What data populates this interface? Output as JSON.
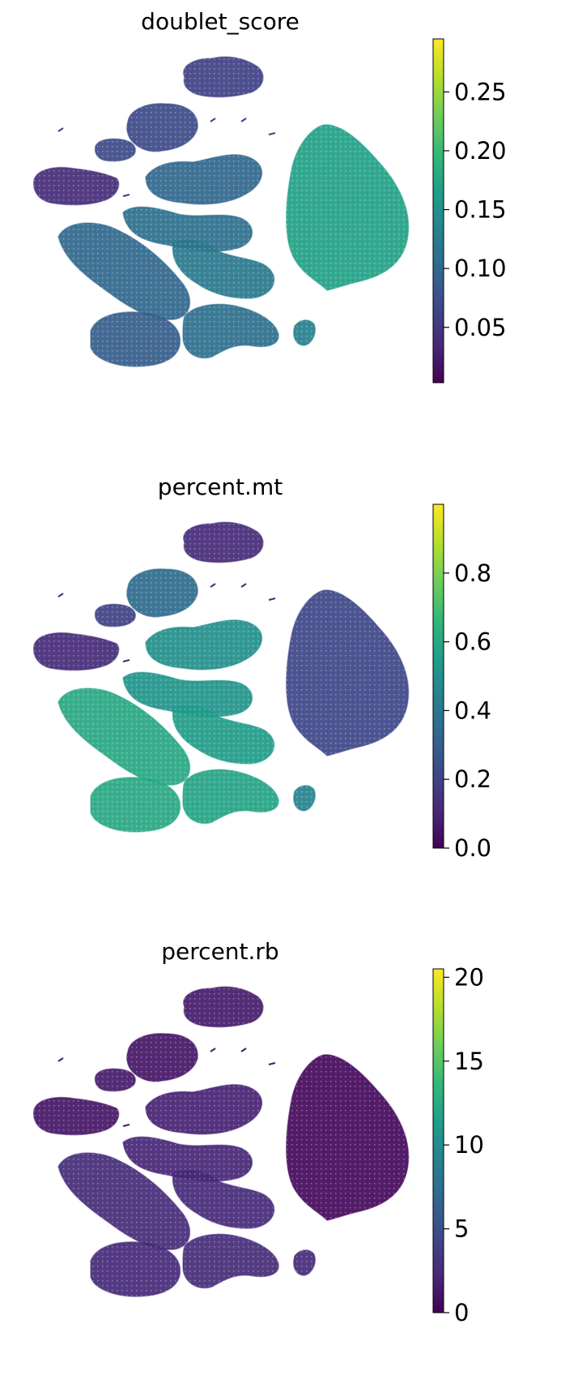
{
  "chart_data": [
    {
      "type": "scatter",
      "title": "doublet_score",
      "colormap": "viridis",
      "colorbar": {
        "min": 0.003,
        "max": 0.295,
        "ticks": [
          0.05,
          0.1,
          0.15,
          0.2,
          0.25
        ],
        "tick_labels": [
          "0.05",
          "0.10",
          "0.15",
          "0.20",
          "0.25"
        ]
      },
      "axes": "off",
      "regions": [
        {
          "name": "top-cluster",
          "level": 0.06
        },
        {
          "name": "upper-left-cluster",
          "level": 0.07
        },
        {
          "name": "small-left-cluster",
          "level": 0.07
        },
        {
          "name": "far-left-cluster",
          "level": 0.04
        },
        {
          "name": "center-upper-cluster",
          "level": 0.1
        },
        {
          "name": "center-cluster",
          "level": 0.11
        },
        {
          "name": "long-left-cluster",
          "level": 0.1
        },
        {
          "name": "center-lower-cluster",
          "level": 0.12
        },
        {
          "name": "bottom-left-cluster",
          "level": 0.09
        },
        {
          "name": "bottom-center-cluster",
          "level": 0.11
        },
        {
          "name": "right-big-cluster",
          "level": 0.17
        },
        {
          "name": "small-satellites",
          "level": 0.13
        }
      ]
    },
    {
      "type": "scatter",
      "title": "percent.mt",
      "colormap": "viridis",
      "colorbar": {
        "min": 0.0,
        "max": 1.0,
        "ticks": [
          0.0,
          0.2,
          0.4,
          0.6,
          0.8
        ],
        "tick_labels": [
          "0.0",
          "0.2",
          "0.4",
          "0.6",
          "0.8"
        ]
      },
      "axes": "off",
      "regions": [
        {
          "name": "top-cluster",
          "level": 0.12
        },
        {
          "name": "upper-left-cluster",
          "level": 0.35
        },
        {
          "name": "small-left-cluster",
          "level": 0.2
        },
        {
          "name": "far-left-cluster",
          "level": 0.12
        },
        {
          "name": "center-upper-cluster",
          "level": 0.5
        },
        {
          "name": "center-cluster",
          "level": 0.52
        },
        {
          "name": "long-left-cluster",
          "level": 0.6
        },
        {
          "name": "center-lower-cluster",
          "level": 0.55
        },
        {
          "name": "bottom-left-cluster",
          "level": 0.6
        },
        {
          "name": "bottom-center-cluster",
          "level": 0.58
        },
        {
          "name": "right-big-cluster",
          "level": 0.22
        },
        {
          "name": "small-satellites",
          "level": 0.45
        }
      ]
    },
    {
      "type": "scatter",
      "title": "percent.rb",
      "colormap": "viridis",
      "colorbar": {
        "min": 0,
        "max": 20.5,
        "ticks": [
          0,
          5,
          10,
          15,
          20
        ],
        "tick_labels": [
          "0",
          "5",
          "10",
          "15",
          "20"
        ]
      },
      "axes": "off",
      "regions": [
        {
          "name": "top-cluster",
          "level": 1.5
        },
        {
          "name": "upper-left-cluster",
          "level": 1.2
        },
        {
          "name": "small-left-cluster",
          "level": 1.5
        },
        {
          "name": "far-left-cluster",
          "level": 1.2
        },
        {
          "name": "center-upper-cluster",
          "level": 2.0
        },
        {
          "name": "center-cluster",
          "level": 2.2
        },
        {
          "name": "long-left-cluster",
          "level": 2.6
        },
        {
          "name": "center-lower-cluster",
          "level": 2.4
        },
        {
          "name": "bottom-left-cluster",
          "level": 2.4
        },
        {
          "name": "bottom-center-cluster",
          "level": 2.6
        },
        {
          "name": "right-big-cluster",
          "level": 0.5
        },
        {
          "name": "small-satellites",
          "level": 2.5
        }
      ]
    }
  ]
}
